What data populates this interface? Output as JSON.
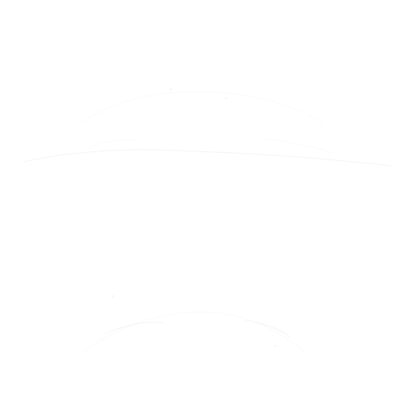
{
  "background_color": "#ffffff",
  "stroke_color": "#f6f6f6",
  "faint_color": "#fafafa"
}
